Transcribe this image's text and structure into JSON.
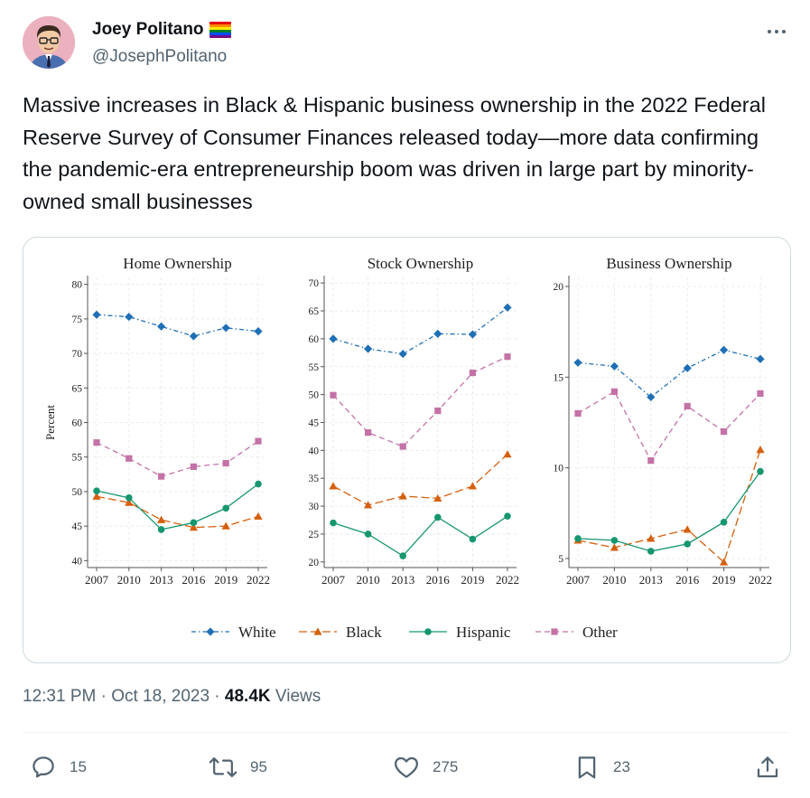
{
  "tweet": {
    "author_name": "Joey Politano",
    "author_flag": "rainbow-flag-icon",
    "handle": "@JosephPolitano",
    "text": "Massive increases in Black & Hispanic business ownership in the 2022 Federal Reserve Survey of Consumer Finances released today—more data confirming the pandemic-era entrepreneurship boom was driven in large part by minority-owned small businesses",
    "time": "12:31 PM",
    "date": "Oct 18, 2023",
    "views_count": "48.4K",
    "views_label": "Views",
    "separator": "·"
  },
  "actions": {
    "replies": "15",
    "reposts": "95",
    "likes": "275",
    "bookmarks": "23"
  },
  "colors": {
    "White": "#1f6fb5",
    "Black": "#d4600d",
    "Hispanic": "#16966f",
    "Other": "#c472a6"
  },
  "chart_data": [
    {
      "type": "line",
      "title": "Home Ownership",
      "ylabel": "Percent",
      "x": [
        2007,
        2010,
        2013,
        2016,
        2019,
        2022
      ],
      "ylim": [
        39,
        81
      ],
      "yticks": [
        40,
        45,
        50,
        55,
        60,
        65,
        70,
        75,
        80
      ],
      "series": [
        {
          "name": "White",
          "values": [
            75.6,
            75.3,
            73.9,
            72.5,
            73.7,
            73.2
          ]
        },
        {
          "name": "Black",
          "values": [
            49.3,
            48.4,
            45.9,
            44.8,
            45.0,
            46.4
          ]
        },
        {
          "name": "Hispanic",
          "values": [
            50.1,
            49.1,
            44.5,
            45.5,
            47.6,
            51.1
          ]
        },
        {
          "name": "Other",
          "values": [
            57.1,
            54.8,
            52.2,
            53.6,
            54.1,
            57.3
          ]
        }
      ]
    },
    {
      "type": "line",
      "title": "Stock Ownership",
      "x": [
        2007,
        2010,
        2013,
        2016,
        2019,
        2022
      ],
      "ylim": [
        19,
        71
      ],
      "yticks": [
        20,
        25,
        30,
        35,
        40,
        45,
        50,
        55,
        60,
        65,
        70
      ],
      "series": [
        {
          "name": "White",
          "values": [
            60.0,
            58.2,
            57.3,
            60.9,
            60.8,
            65.6
          ]
        },
        {
          "name": "Black",
          "values": [
            33.6,
            30.2,
            31.8,
            31.4,
            33.6,
            39.3
          ]
        },
        {
          "name": "Hispanic",
          "values": [
            27.0,
            25.0,
            21.1,
            28.0,
            24.1,
            28.2
          ]
        },
        {
          "name": "Other",
          "values": [
            49.9,
            43.2,
            40.7,
            47.1,
            53.9,
            56.8
          ]
        }
      ]
    },
    {
      "type": "line",
      "title": "Business Ownership",
      "x": [
        2007,
        2010,
        2013,
        2016,
        2019,
        2022
      ],
      "ylim": [
        4.5,
        20.5
      ],
      "yticks": [
        5,
        10,
        15,
        20
      ],
      "series": [
        {
          "name": "White",
          "values": [
            15.8,
            15.6,
            13.9,
            15.5,
            16.5,
            16.0
          ]
        },
        {
          "name": "Black",
          "values": [
            6.0,
            5.6,
            6.1,
            6.6,
            4.8,
            11.0
          ]
        },
        {
          "name": "Hispanic",
          "values": [
            6.1,
            6.0,
            5.4,
            5.8,
            7.0,
            9.8
          ]
        },
        {
          "name": "Other",
          "values": [
            13.0,
            14.2,
            10.4,
            13.4,
            12.0,
            14.1
          ]
        }
      ]
    }
  ],
  "legend": [
    {
      "name": "White",
      "marker": "diamond",
      "dash": "dashdot"
    },
    {
      "name": "Black",
      "marker": "triangle",
      "dash": "longdash"
    },
    {
      "name": "Hispanic",
      "marker": "circle",
      "dash": "solid"
    },
    {
      "name": "Other",
      "marker": "square",
      "dash": "dash"
    }
  ]
}
